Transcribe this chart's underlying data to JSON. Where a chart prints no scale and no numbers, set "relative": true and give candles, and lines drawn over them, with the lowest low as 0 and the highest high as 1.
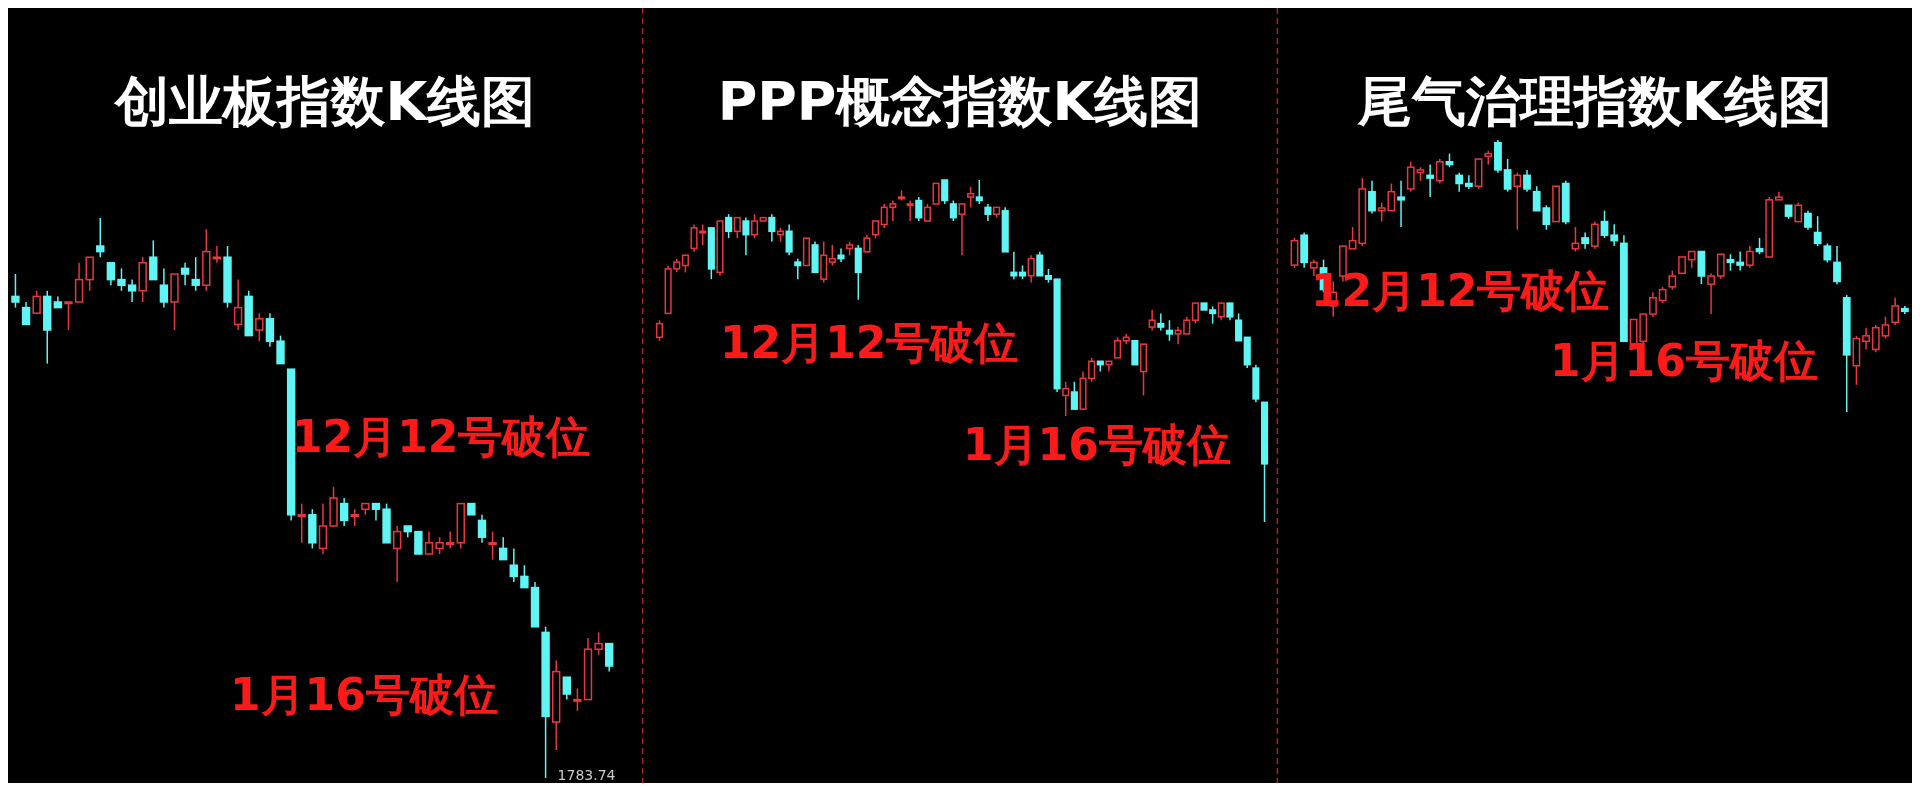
{
  "chart_data": [
    {
      "type": "candlestick",
      "title": "创业板指数K线图",
      "relative": true,
      "categories": [
        null,
        null,
        null,
        null,
        null,
        null,
        null,
        null,
        null,
        null,
        null,
        null,
        null,
        null,
        null,
        null,
        null,
        null,
        null,
        null,
        null,
        null,
        null,
        null,
        null,
        null,
        null,
        null,
        null,
        null,
        null,
        null,
        null,
        null,
        null,
        null,
        null,
        null,
        null,
        null,
        null,
        null,
        null,
        null,
        null,
        null,
        null,
        null,
        null,
        null,
        null,
        null,
        null,
        null,
        null,
        null,
        null
      ],
      "ohlc": [
        [
          0.86,
          0.9,
          0.84,
          0.85
        ],
        [
          0.84,
          0.85,
          0.81,
          0.81
        ],
        [
          0.83,
          0.87,
          0.83,
          0.86
        ],
        [
          0.86,
          0.87,
          0.74,
          0.8
        ],
        [
          0.85,
          0.86,
          0.84,
          0.84
        ],
        [
          0.85,
          0.85,
          0.8,
          0.85
        ],
        [
          0.85,
          0.92,
          0.85,
          0.89
        ],
        [
          0.89,
          0.93,
          0.87,
          0.93
        ],
        [
          0.95,
          1.0,
          0.93,
          0.94
        ],
        [
          0.92,
          0.92,
          0.88,
          0.89
        ],
        [
          0.89,
          0.91,
          0.87,
          0.88
        ],
        [
          0.88,
          0.89,
          0.85,
          0.87
        ],
        [
          0.87,
          0.93,
          0.85,
          0.92
        ],
        [
          0.93,
          0.96,
          0.89,
          0.89
        ],
        [
          0.88,
          0.91,
          0.84,
          0.85
        ],
        [
          0.85,
          0.9,
          0.8,
          0.9
        ],
        [
          0.91,
          0.92,
          0.88,
          0.9
        ],
        [
          0.89,
          0.93,
          0.87,
          0.88
        ],
        [
          0.88,
          0.98,
          0.87,
          0.94
        ],
        [
          0.93,
          0.95,
          0.92,
          0.93
        ],
        [
          0.93,
          0.95,
          0.84,
          0.85
        ],
        [
          0.81,
          0.89,
          0.8,
          0.84
        ],
        [
          0.86,
          0.87,
          0.79,
          0.79
        ],
        [
          0.8,
          0.83,
          0.78,
          0.82
        ],
        [
          0.82,
          0.83,
          0.77,
          0.78
        ],
        [
          0.78,
          0.79,
          0.74,
          0.74
        ],
        [
          0.73,
          0.73,
          0.46,
          0.47
        ],
        [
          0.47,
          0.49,
          0.42,
          0.47
        ],
        [
          0.47,
          0.48,
          0.41,
          0.42
        ],
        [
          0.41,
          0.49,
          0.4,
          0.45
        ],
        [
          0.45,
          0.52,
          0.45,
          0.5
        ],
        [
          0.49,
          0.5,
          0.45,
          0.46
        ],
        [
          0.47,
          0.48,
          0.45,
          0.47
        ],
        [
          0.48,
          0.49,
          0.47,
          0.49
        ],
        [
          0.49,
          0.49,
          0.46,
          0.48
        ],
        [
          0.48,
          0.49,
          0.42,
          0.42
        ],
        [
          0.41,
          0.45,
          0.35,
          0.44
        ],
        [
          0.45,
          0.45,
          0.43,
          0.44
        ],
        [
          0.44,
          0.44,
          0.4,
          0.4
        ],
        [
          0.4,
          0.44,
          0.4,
          0.42
        ],
        [
          0.41,
          0.43,
          0.4,
          0.42
        ],
        [
          0.42,
          0.44,
          0.41,
          0.42
        ],
        [
          0.42,
          0.49,
          0.41,
          0.49
        ],
        [
          0.49,
          0.49,
          0.47,
          0.47
        ],
        [
          0.46,
          0.47,
          0.42,
          0.43
        ],
        [
          0.42,
          0.44,
          0.39,
          0.42
        ],
        [
          0.41,
          0.43,
          0.39,
          0.39
        ],
        [
          0.38,
          0.41,
          0.35,
          0.36
        ],
        [
          0.36,
          0.38,
          0.34,
          0.34
        ],
        [
          0.34,
          0.35,
          0.27,
          0.27
        ],
        [
          0.26,
          0.27,
          0,
          0.11
        ],
        [
          0.1,
          0.21,
          0.05,
          0.19
        ],
        [
          0.18,
          0.18,
          0.14,
          0.15
        ],
        [
          0.14,
          0.16,
          0.12,
          0.14
        ],
        [
          0.14,
          0.25,
          0.14,
          0.23
        ],
        [
          0.23,
          0.26,
          0.22,
          0.24
        ],
        [
          0.24,
          0.24,
          0.19,
          0.2
        ]
      ],
      "annotations": [
        "12月12号破位",
        "1月16号破位",
        "1783.74"
      ]
    },
    {
      "type": "candlestick",
      "title": "PPP概念指数K线图",
      "relative": true,
      "categories": [
        null,
        null,
        null,
        null,
        null,
        null,
        null,
        null,
        null,
        null,
        null,
        null,
        null,
        null,
        null,
        null,
        null,
        null,
        null,
        null,
        null,
        null,
        null,
        null,
        null,
        null,
        null,
        null,
        null,
        null,
        null,
        null,
        null,
        null,
        null,
        null,
        null,
        null,
        null,
        null,
        null,
        null,
        null,
        null,
        null,
        null,
        null,
        null,
        null,
        null,
        null,
        null,
        null,
        null,
        null,
        null,
        null,
        null,
        null,
        null,
        null,
        null,
        null,
        null,
        null,
        null,
        null,
        null,
        null,
        null,
        null
      ],
      "ohlc": [
        [
          0.54,
          0.59,
          0.53,
          0.58
        ],
        [
          0.61,
          0.75,
          0.61,
          0.74
        ],
        [
          0.74,
          0.77,
          0.73,
          0.76
        ],
        [
          0.75,
          0.78,
          0.73,
          0.78
        ],
        [
          0.8,
          0.87,
          0.79,
          0.86
        ],
        [
          0.85,
          0.87,
          0.81,
          0.85
        ],
        [
          0.86,
          0.86,
          0.71,
          0.74
        ],
        [
          0.73,
          0.88,
          0.72,
          0.88
        ],
        [
          0.89,
          0.9,
          0.83,
          0.85
        ],
        [
          0.85,
          0.89,
          0.83,
          0.89
        ],
        [
          0.88,
          0.89,
          0.78,
          0.84
        ],
        [
          0.84,
          0.9,
          0.83,
          0.88
        ],
        [
          0.88,
          0.89,
          0.88,
          0.89
        ],
        [
          0.89,
          0.9,
          0.82,
          0.85
        ],
        [
          0.84,
          0.86,
          0.82,
          0.85
        ],
        [
          0.85,
          0.87,
          0.78,
          0.79
        ],
        [
          0.76,
          0.77,
          0.71,
          0.75
        ],
        [
          0.75,
          0.83,
          0.75,
          0.83
        ],
        [
          0.81,
          0.82,
          0.73,
          0.73
        ],
        [
          0.71,
          0.82,
          0.7,
          0.78
        ],
        [
          0.76,
          0.81,
          0.75,
          0.77
        ],
        [
          0.78,
          0.8,
          0.76,
          0.77
        ],
        [
          0.8,
          0.82,
          0.78,
          0.81
        ],
        [
          0.8,
          0.81,
          0.65,
          0.73
        ],
        [
          0.79,
          0.84,
          0.79,
          0.83
        ],
        [
          0.84,
          0.88,
          0.83,
          0.88
        ],
        [
          0.87,
          0.93,
          0.86,
          0.92
        ],
        [
          0.92,
          0.94,
          0.88,
          0.93
        ],
        [
          0.95,
          0.97,
          0.94,
          0.95
        ],
        [
          0.93,
          0.94,
          0.88,
          0.93
        ],
        [
          0.94,
          0.95,
          0.88,
          0.89
        ],
        [
          0.88,
          0.93,
          0.88,
          0.92
        ],
        [
          0.93,
          0.99,
          0.93,
          0.99
        ],
        [
          1.0,
          1.0,
          0.93,
          0.94
        ],
        [
          0.93,
          0.94,
          0.88,
          0.89
        ],
        [
          0.9,
          0.93,
          0.78,
          0.93
        ],
        [
          0.95,
          0.98,
          0.92,
          0.96
        ],
        [
          0.95,
          1.0,
          0.93,
          0.94
        ],
        [
          0.92,
          0.93,
          0.88,
          0.9
        ],
        [
          0.9,
          0.92,
          0.89,
          0.92
        ],
        [
          0.91,
          0.92,
          0.79,
          0.79
        ],
        [
          0.73,
          0.79,
          0.71,
          0.72
        ],
        [
          0.73,
          0.75,
          0.71,
          0.72
        ],
        [
          0.72,
          0.78,
          0.7,
          0.77
        ],
        [
          0.78,
          0.79,
          0.72,
          0.72
        ],
        [
          0.72,
          0.74,
          0.7,
          0.71
        ],
        [
          0.71,
          0.71,
          0.38,
          0.39
        ],
        [
          0.37,
          0.41,
          0.31,
          0.39
        ],
        [
          0.38,
          0.41,
          0.33,
          0.33
        ],
        [
          0.33,
          0.44,
          0.33,
          0.42
        ],
        [
          0.42,
          0.48,
          0.41,
          0.47
        ],
        [
          0.47,
          0.47,
          0.44,
          0.46
        ],
        [
          0.46,
          0.47,
          0.44,
          0.47
        ],
        [
          0.48,
          0.54,
          0.48,
          0.53
        ],
        [
          0.53,
          0.55,
          0.52,
          0.54
        ],
        [
          0.53,
          0.53,
          0.46,
          0.46
        ],
        [
          0.44,
          0.52,
          0.37,
          0.52
        ],
        [
          0.57,
          0.62,
          0.56,
          0.59
        ],
        [
          0.58,
          0.61,
          0.56,
          0.57
        ],
        [
          0.56,
          0.59,
          0.53,
          0.55
        ],
        [
          0.55,
          0.57,
          0.52,
          0.56
        ],
        [
          0.55,
          0.6,
          0.55,
          0.59
        ],
        [
          0.59,
          0.64,
          0.58,
          0.64
        ],
        [
          0.64,
          0.64,
          0.62,
          0.62
        ],
        [
          0.62,
          0.63,
          0.58,
          0.61
        ],
        [
          0.6,
          0.64,
          0.59,
          0.64
        ],
        [
          0.64,
          0.64,
          0.59,
          0.6
        ],
        [
          0.59,
          0.61,
          0.53,
          0.53
        ],
        [
          0.54,
          0.54,
          0.45,
          0.46
        ],
        [
          0.45,
          0.46,
          0.35,
          0.36
        ],
        [
          0.35,
          0.35,
          0,
          0.17
        ]
      ],
      "annotations": [
        "12月12号破位",
        "1月16号破位"
      ]
    },
    {
      "type": "candlestick",
      "title": "尾气治理指数K线图",
      "relative": true,
      "categories": [
        null,
        null,
        null,
        null,
        null,
        null,
        null,
        null,
        null,
        null,
        null,
        null,
        null,
        null,
        null,
        null,
        null,
        null,
        null,
        null,
        null,
        null,
        null,
        null,
        null,
        null,
        null,
        null,
        null,
        null,
        null,
        null,
        null,
        null,
        null,
        null,
        null,
        null,
        null,
        null,
        null,
        null,
        null,
        null,
        null,
        null,
        null,
        null,
        null,
        null,
        null,
        null,
        null,
        null,
        null,
        null,
        null,
        null,
        null,
        null,
        null,
        null,
        null,
        null
      ],
      "ohlc": [
        [
          0.54,
          0.64,
          0.53,
          0.63
        ],
        [
          0.65,
          0.66,
          0.53,
          0.55
        ],
        [
          0.53,
          0.56,
          0.5,
          0.55
        ],
        [
          0.53,
          0.56,
          0.44,
          0.45
        ],
        [
          0.39,
          0.48,
          0.35,
          0.44
        ],
        [
          0.5,
          0.61,
          0.48,
          0.61
        ],
        [
          0.6,
          0.68,
          0.6,
          0.63
        ],
        [
          0.62,
          0.86,
          0.61,
          0.82
        ],
        [
          0.81,
          0.85,
          0.73,
          0.74
        ],
        [
          0.74,
          0.77,
          0.7,
          0.75
        ],
        [
          0.74,
          0.84,
          0.74,
          0.81
        ],
        [
          0.79,
          0.85,
          0.68,
          0.78
        ],
        [
          0.82,
          0.92,
          0.81,
          0.9
        ],
        [
          0.88,
          0.9,
          0.85,
          0.89
        ],
        [
          0.87,
          0.91,
          0.79,
          0.86
        ],
        [
          0.85,
          0.93,
          0.84,
          0.92
        ],
        [
          0.92,
          0.95,
          0.9,
          0.91
        ],
        [
          0.87,
          0.88,
          0.81,
          0.84
        ],
        [
          0.84,
          0.87,
          0.82,
          0.83
        ],
        [
          0.83,
          0.93,
          0.82,
          0.93
        ],
        [
          0.94,
          0.96,
          0.91,
          0.95
        ],
        [
          0.99,
          1.0,
          0.88,
          0.89
        ],
        [
          0.89,
          0.93,
          0.81,
          0.82
        ],
        [
          0.83,
          0.88,
          0.67,
          0.87
        ],
        [
          0.87,
          0.89,
          0.81,
          0.82
        ],
        [
          0.81,
          0.83,
          0.74,
          0.74
        ],
        [
          0.75,
          0.76,
          0.67,
          0.69
        ],
        [
          0.7,
          0.83,
          0.7,
          0.83
        ],
        [
          0.84,
          0.85,
          0.69,
          0.7
        ],
        [
          0.6,
          0.68,
          0.59,
          0.62
        ],
        [
          0.64,
          0.66,
          0.6,
          0.62
        ],
        [
          0.61,
          0.7,
          0.6,
          0.69
        ],
        [
          0.7,
          0.74,
          0.64,
          0.65
        ],
        [
          0.65,
          0.69,
          0.61,
          0.63
        ],
        [
          0.62,
          0.65,
          0.26,
          0.26
        ],
        [
          0.25,
          0.34,
          0.25,
          0.34
        ],
        [
          0.26,
          0.36,
          0.25,
          0.36
        ],
        [
          0.36,
          0.44,
          0.35,
          0.42
        ],
        [
          0.41,
          0.46,
          0.4,
          0.45
        ],
        [
          0.46,
          0.52,
          0.45,
          0.5
        ],
        [
          0.51,
          0.57,
          0.51,
          0.57
        ],
        [
          0.56,
          0.59,
          0.53,
          0.59
        ],
        [
          0.59,
          0.59,
          0.47,
          0.5
        ],
        [
          0.47,
          0.51,
          0.36,
          0.5
        ],
        [
          0.5,
          0.58,
          0.49,
          0.58
        ],
        [
          0.56,
          0.58,
          0.52,
          0.55
        ],
        [
          0.55,
          0.59,
          0.52,
          0.54
        ],
        [
          0.54,
          0.61,
          0.53,
          0.59
        ],
        [
          0.6,
          0.64,
          0.58,
          0.59
        ],
        [
          0.57,
          0.79,
          0.57,
          0.78
        ],
        [
          0.78,
          0.81,
          0.78,
          0.79
        ],
        [
          0.76,
          0.76,
          0.71,
          0.72
        ],
        [
          0.7,
          0.77,
          0.7,
          0.76
        ],
        [
          0.73,
          0.74,
          0.67,
          0.68
        ],
        [
          0.66,
          0.72,
          0.61,
          0.62
        ],
        [
          0.61,
          0.62,
          0.55,
          0.56
        ],
        [
          0.55,
          0.61,
          0.47,
          0.48
        ],
        [
          0.42,
          0.43,
          0,
          0.21
        ],
        [
          0.17,
          0.28,
          0.1,
          0.27
        ],
        [
          0.26,
          0.31,
          0.23,
          0.28
        ],
        [
          0.23,
          0.32,
          0.22,
          0.31
        ],
        [
          0.28,
          0.35,
          0.27,
          0.32
        ],
        [
          0.33,
          0.42,
          0.32,
          0.39
        ],
        [
          0.38,
          0.39,
          0.36,
          0.37
        ]
      ],
      "annotations": [
        "12月12号破位",
        "1月16号破位"
      ]
    }
  ]
}
